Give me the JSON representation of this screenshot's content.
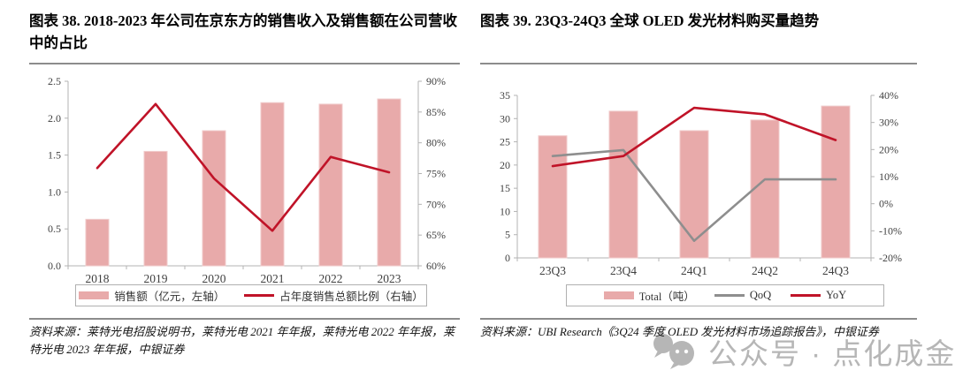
{
  "colors": {
    "bar": "#e8aaaa",
    "bar_edge": "#f0caca",
    "yoy_red": "#c01328",
    "qoq_gray": "#8e8e8e",
    "axis": "#b3b3b3",
    "tick_text": "#3f3f3f",
    "divider": "#8c8c8c",
    "watermark": "#b6b6b6"
  },
  "watermark": {
    "icon": "wechat-chat-bubbles",
    "text": "公众号 · 点化成金"
  },
  "chart_data": [
    {
      "type": "bar",
      "subtype": "bar+line, dual axis",
      "title": "图表 38. 2018-2023 年公司在京东方的销售收入及销售额在公司营收中的占比",
      "source": "资料来源：莱特光电招股说明书，莱特光电 2021 年年报，莱特光电 2022 年年报，莱特光电 2023 年年报，中银证券",
      "categories": [
        "2018",
        "2019",
        "2020",
        "2021",
        "2022",
        "2023"
      ],
      "series": [
        {
          "name": "销售额（亿元，左轴）",
          "kind": "bar",
          "axis": "left",
          "color": "#e8aaaa",
          "values": [
            0.63,
            1.55,
            1.83,
            2.21,
            2.19,
            2.26
          ]
        },
        {
          "name": "占年度销售总额比例（右轴）",
          "kind": "line",
          "axis": "right",
          "color": "#c01328",
          "values": [
            75.9,
            86.3,
            74.2,
            65.7,
            77.7,
            75.2
          ]
        }
      ],
      "left_axis": {
        "min": 0,
        "max": 2.5,
        "ticks": [
          "0.0",
          "0.5",
          "1.0",
          "1.5",
          "2.0",
          "2.5"
        ]
      },
      "right_axis": {
        "min": 60,
        "max": 90,
        "ticks": [
          "60%",
          "65%",
          "70%",
          "75%",
          "80%",
          "85%",
          "90%"
        ]
      },
      "grid": false,
      "legend_position": "bottom"
    },
    {
      "type": "bar",
      "subtype": "bar+line, dual axis",
      "title": "图表 39. 23Q3-24Q3 全球 OLED 发光材料购买量趋势",
      "source": "资料来源：UBI Research《3Q24 季度 OLED 发光材料市场追踪报告》，中银证券",
      "categories": [
        "23Q3",
        "23Q4",
        "24Q1",
        "24Q2",
        "24Q3"
      ],
      "series": [
        {
          "name": "Total（吨）",
          "kind": "bar",
          "axis": "left",
          "color": "#e8aaaa",
          "values": [
            26.3,
            31.6,
            27.4,
            29.7,
            32.7
          ]
        },
        {
          "name": "QoQ",
          "kind": "line",
          "axis": "right",
          "color": "#8e8e8e",
          "values": [
            17.6,
            19.8,
            -13.7,
            9.0,
            9.0
          ]
        },
        {
          "name": "YoY",
          "kind": "line",
          "axis": "right",
          "color": "#c01328",
          "values": [
            13.9,
            17.6,
            35.4,
            33.0,
            23.5
          ]
        }
      ],
      "left_axis": {
        "min": 0,
        "max": 35,
        "ticks": [
          "0",
          "5",
          "10",
          "15",
          "20",
          "25",
          "30",
          "35"
        ]
      },
      "right_axis": {
        "min": -20,
        "max": 40,
        "ticks": [
          "-20%",
          "-10%",
          "0%",
          "10%",
          "20%",
          "30%",
          "40%"
        ]
      },
      "grid": false,
      "legend_position": "bottom"
    }
  ]
}
